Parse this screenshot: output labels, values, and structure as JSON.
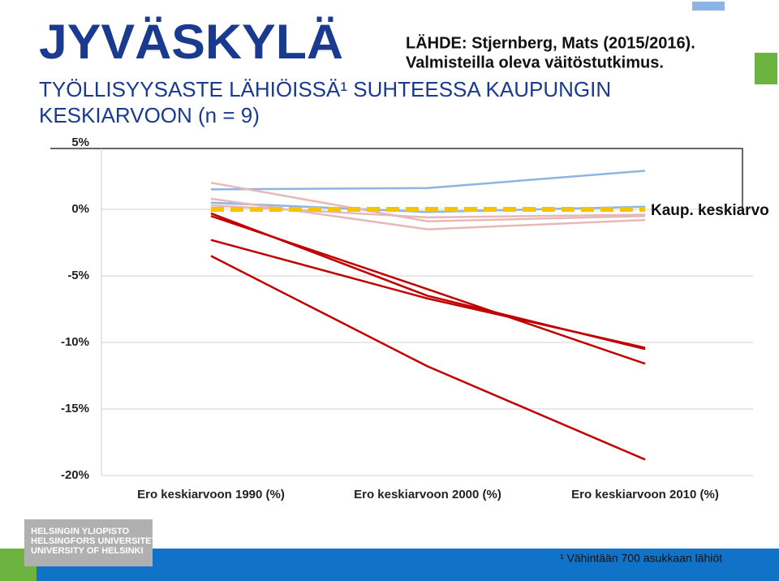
{
  "header": {
    "city": "JYVÄSKYLÄ",
    "source_1": "LÄHDE: Stjernberg, Mats (2015/2016).",
    "source_2": "Valmisteilla oleva väitöstutkimus.",
    "title_1": "TYÖLLISYYSASTE LÄHIÖISSÄ¹ SUHTEESSA KAUPUNGIN",
    "title_2": "KESKIARVOON (n = 9)"
  },
  "chart_data": {
    "type": "line",
    "categories": [
      "Ero keskiarvoon 1990 (%)",
      "Ero keskiarvoon 2000 (%)",
      "Ero keskiarvoon 2010 (%)"
    ],
    "series": [
      {
        "color": "#8db4e2",
        "values": [
          1.5,
          1.6,
          2.9
        ]
      },
      {
        "color": "#8db4e2",
        "values": [
          0.5,
          -0.2,
          0.2
        ]
      },
      {
        "color": "#e6b9b8",
        "values": [
          2.0,
          -0.9,
          -0.5
        ]
      },
      {
        "color": "#e6b9b8",
        "values": [
          0.8,
          -1.5,
          -0.8
        ]
      },
      {
        "color": "#e6b9b8",
        "values": [
          0.3,
          -0.6,
          -0.4
        ]
      },
      {
        "color": "#c00000",
        "values": [
          -0.3,
          -6.5,
          -10.5
        ]
      },
      {
        "color": "#c00000",
        "values": [
          -0.5,
          -6.0,
          -11.6
        ]
      },
      {
        "color": "#c00000",
        "values": [
          -2.3,
          -6.7,
          -10.4
        ]
      },
      {
        "color": "#c00000",
        "values": [
          -3.5,
          -11.8,
          -18.8
        ]
      },
      {
        "name": "Kaup. keskiarvo",
        "color": "#f5c400",
        "dashed": true,
        "values": [
          0,
          0,
          0
        ]
      }
    ],
    "ylim": [
      -20,
      5
    ],
    "yticks": [
      {
        "value": 5,
        "label": "5%"
      },
      {
        "value": 0,
        "label": "0%"
      },
      {
        "value": -5,
        "label": "-5%"
      },
      {
        "value": -10,
        "label": "-10%"
      },
      {
        "value": -15,
        "label": "-15%"
      },
      {
        "value": -20,
        "label": "-20%"
      }
    ],
    "grid": true
  },
  "footnote": "¹ Vähintään 700 asukkaan lähiöt",
  "logo": [
    "HELSINGIN YLIOPISTO",
    "HELSINGFORS UNIVERSITET",
    "UNIVERSITY OF HELSINKI"
  ]
}
